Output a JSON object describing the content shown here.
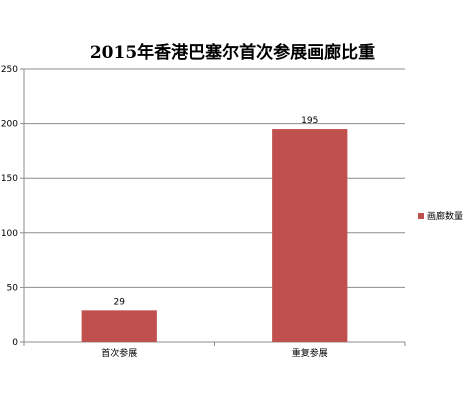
{
  "chart_data": {
    "type": "bar",
    "title": "2015年香港巴塞尔首次参展画廊比重",
    "categories": [
      "首次参展",
      "重复参展"
    ],
    "series": [
      {
        "name": "画廊数量",
        "values": [
          29,
          195
        ]
      }
    ],
    "data_labels": [
      "29",
      "195"
    ],
    "yticks": [
      "0",
      "50",
      "100",
      "150",
      "200",
      "250"
    ],
    "ylim": [
      0,
      250
    ],
    "xlabel": "",
    "ylabel": "",
    "grid": true,
    "legend": "right",
    "bar_color": "#c0504d",
    "gridline_color": "#8c8c8c"
  }
}
